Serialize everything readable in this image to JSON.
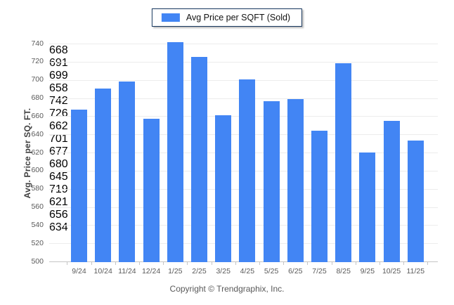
{
  "legend": {
    "label": "Avg Price per SQFT (Sold)",
    "swatch_color": "#4285f4"
  },
  "chart_data": {
    "type": "bar",
    "categories": [
      "9/24",
      "10/24",
      "11/24",
      "12/24",
      "1/25",
      "2/25",
      "3/25",
      "4/25",
      "5/25",
      "6/25",
      "7/25",
      "8/25",
      "9/25",
      "10/25",
      "11/25"
    ],
    "values": [
      668,
      691,
      699,
      658,
      742,
      726,
      662,
      701,
      677,
      680,
      645,
      719,
      621,
      656,
      634
    ],
    "title": "",
    "xlabel": "",
    "ylabel": "Avg. Price per SQ. FT.",
    "ylim": [
      500,
      740
    ],
    "ytick_step": 20,
    "grid": true,
    "bar_color": "#4285f4",
    "value_labels": true,
    "legend_entries": [
      "Avg Price per SQFT (Sold)"
    ],
    "legend_position": "top"
  },
  "footer": {
    "copyright": "Copyright © Trendgraphix, Inc."
  }
}
